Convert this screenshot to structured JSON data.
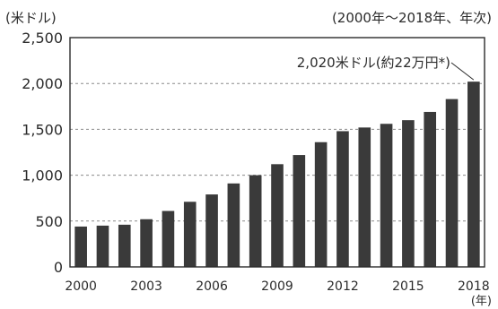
{
  "chart_data": {
    "type": "bar",
    "unit_label": "(米ドル)",
    "period_label": "(2000年～2018年、年次)",
    "x_unit_label": "(年)",
    "categories": [
      "2000",
      "2001",
      "2002",
      "2003",
      "2004",
      "2005",
      "2006",
      "2007",
      "2008",
      "2009",
      "2010",
      "2011",
      "2012",
      "2013",
      "2014",
      "2015",
      "2016",
      "2017",
      "2018"
    ],
    "x_tick_labels": [
      "2000",
      "2003",
      "2006",
      "2009",
      "2012",
      "2015",
      "2018"
    ],
    "values": [
      440,
      450,
      460,
      520,
      610,
      710,
      790,
      910,
      1000,
      1120,
      1220,
      1360,
      1480,
      1520,
      1560,
      1600,
      1690,
      1830,
      2020
    ],
    "y_ticks": [
      0,
      500,
      1000,
      1500,
      2000,
      2500
    ],
    "y_tick_labels": [
      "0",
      "500",
      "1,000",
      "1,500",
      "2,000",
      "2,500"
    ],
    "ylim": [
      0,
      2500
    ],
    "grid": "horizontal-dashed",
    "annotation": {
      "text": "2,020米ドル(約22万円*)",
      "target": "2018"
    },
    "colors": {
      "bar": "#3a3a3a",
      "grid": "#8a8a8a",
      "frame": "#2b2b2b",
      "text": "#2b2b2b"
    }
  }
}
